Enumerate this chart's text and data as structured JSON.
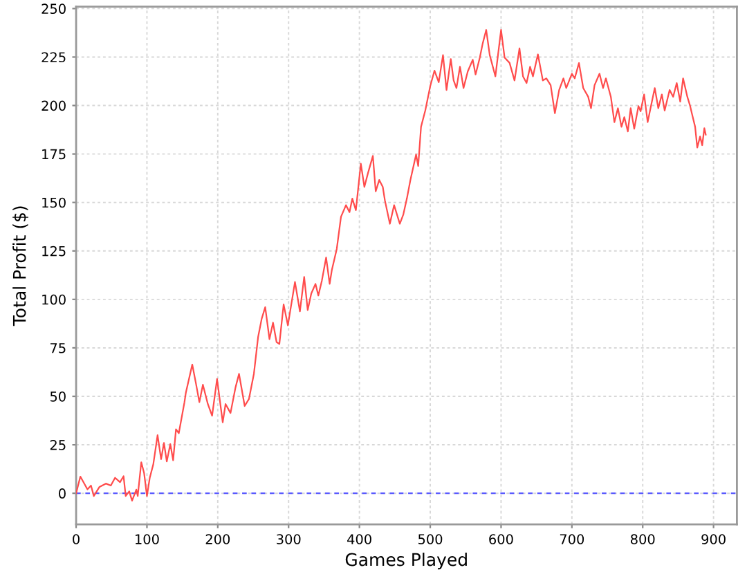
{
  "chart_data": {
    "type": "line",
    "xlabel": "Games Played",
    "ylabel": "Total Profit ($)",
    "xlim": [
      0,
      933
    ],
    "ylim": [
      -16,
      251
    ],
    "xticks": [
      0,
      100,
      200,
      300,
      400,
      500,
      600,
      700,
      800,
      900
    ],
    "yticks": [
      0,
      25,
      50,
      75,
      100,
      125,
      150,
      175,
      200,
      225,
      250
    ],
    "grid": true,
    "marker": "none",
    "line_style": "solid",
    "ref_lines": [
      {
        "axis": "y",
        "value": 0,
        "color": "#5a5aff",
        "line_style": "dashed"
      }
    ],
    "series": [
      {
        "color": "#ff4c4c",
        "x": [
          0,
          6,
          16,
          21,
          25,
          33,
          42,
          49,
          55,
          62,
          67,
          70,
          75,
          79,
          85,
          87,
          92,
          96,
          100,
          104,
          109,
          115,
          120,
          124,
          128,
          133,
          137,
          141,
          145,
          153,
          155,
          164,
          169,
          174,
          179,
          186,
          192,
          199,
          207,
          211,
          218,
          225,
          230,
          238,
          244,
          251,
          257,
          262,
          267,
          273,
          278,
          283,
          287,
          293,
          299,
          309,
          316,
          322,
          327,
          332,
          338,
          342,
          347,
          353,
          358,
          361,
          368,
          374,
          381,
          386,
          390,
          395,
          402,
          407,
          412,
          419,
          423,
          428,
          433,
          436,
          443,
          449,
          457,
          462,
          467,
          472,
          480,
          483,
          487,
          493,
          500,
          506,
          512,
          518,
          523,
          529,
          533,
          537,
          542,
          547,
          553,
          560,
          564,
          570,
          574,
          579,
          584,
          592,
          600,
          605,
          612,
          619,
          626,
          631,
          636,
          641,
          645,
          652,
          659,
          664,
          670,
          676,
          682,
          688,
          692,
          700,
          704,
          710,
          716,
          723,
          727,
          732,
          739,
          744,
          748,
          755,
          760,
          765,
          770,
          774,
          779,
          783,
          788,
          794,
          797,
          802,
          807,
          811,
          817,
          822,
          827,
          831,
          838,
          843,
          848,
          853,
          857,
          863,
          867,
          870,
          874,
          877,
          881,
          884,
          887,
          889
        ],
        "values": [
          0,
          8.6,
          2,
          4,
          -1.4,
          3.3,
          5,
          4,
          8,
          5.7,
          8.8,
          -1.4,
          1,
          -3.8,
          1.9,
          -1.4,
          16,
          10.4,
          -1.4,
          8,
          15,
          30,
          17.6,
          26,
          16.4,
          25.4,
          17,
          33,
          31,
          47,
          52,
          66.4,
          57,
          47,
          56,
          46,
          40,
          59,
          36.6,
          46,
          41.4,
          54.5,
          61.6,
          45,
          48.6,
          61.6,
          80.7,
          90,
          96,
          79.5,
          88,
          78,
          77,
          97.4,
          86.6,
          109,
          93.8,
          111.6,
          94.5,
          103,
          108,
          102,
          109.7,
          121.6,
          108,
          115,
          126,
          142.6,
          148.6,
          145,
          152,
          146,
          170,
          158,
          165,
          174,
          155.7,
          161.6,
          158,
          151,
          139,
          148.6,
          139,
          143.8,
          152,
          161.6,
          174.7,
          168.8,
          189,
          197.4,
          210,
          218,
          212,
          226,
          208,
          224,
          213,
          209,
          220,
          209,
          217.6,
          223.6,
          216,
          224.7,
          231.9,
          239,
          226,
          215,
          239,
          224.7,
          222,
          212.9,
          229.5,
          215,
          211.6,
          220,
          215,
          226.4,
          212.9,
          214,
          210.5,
          196,
          208,
          214,
          209,
          216.4,
          214,
          221.9,
          209,
          204.5,
          198.6,
          210.5,
          216.4,
          209,
          214,
          204.5,
          191.4,
          198.6,
          189,
          194,
          186.6,
          198.6,
          188,
          199.7,
          197,
          205.7,
          191.4,
          198.6,
          209,
          198.6,
          205.7,
          197.4,
          208,
          204.5,
          211.6,
          202,
          214,
          204.5,
          199.7,
          195,
          189,
          178.3,
          184,
          179.5,
          188.3,
          185
        ]
      }
    ]
  }
}
